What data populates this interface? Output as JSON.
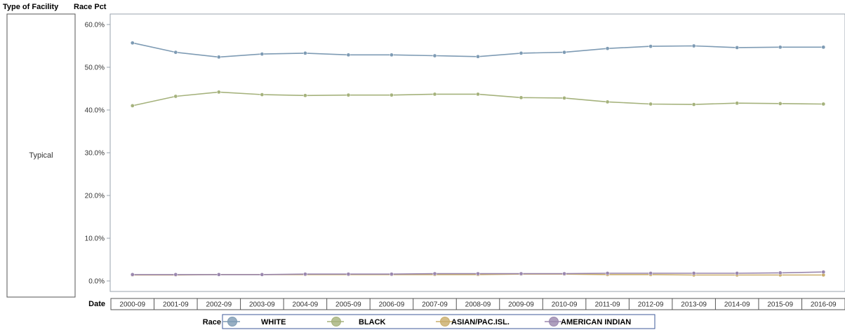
{
  "header": {
    "facility_label": "Type of Facility",
    "pct_label": "Race Pct"
  },
  "row_label": "Typical",
  "chart_data": {
    "type": "line",
    "xlabel": "Date",
    "ylabel": "",
    "ylim": [
      0,
      60
    ],
    "yticks": [
      "0.0%",
      "10.0%",
      "20.0%",
      "30.0%",
      "40.0%",
      "50.0%",
      "60.0%"
    ],
    "yticks_values": [
      0,
      10,
      20,
      30,
      40,
      50,
      60
    ],
    "categories": [
      "2000-09",
      "2001-09",
      "2002-09",
      "2003-09",
      "2004-09",
      "2005-09",
      "2006-09",
      "2007-09",
      "2008-09",
      "2009-09",
      "2010-09",
      "2011-09",
      "2012-09",
      "2013-09",
      "2014-09",
      "2015-09",
      "2016-09"
    ],
    "grid": false,
    "legend_position": "bottom",
    "legend_title": "Race",
    "series": [
      {
        "name": "WHITE",
        "color": "#7e9bb4",
        "values": [
          55.7,
          53.5,
          52.4,
          53.1,
          53.3,
          52.9,
          52.9,
          52.7,
          52.5,
          53.3,
          53.5,
          54.4,
          54.9,
          55.0,
          54.6,
          54.7,
          54.7
        ]
      },
      {
        "name": "BLACK",
        "color": "#a5b27c",
        "values": [
          41.0,
          43.2,
          44.2,
          43.6,
          43.4,
          43.5,
          43.5,
          43.7,
          43.7,
          42.9,
          42.8,
          41.9,
          41.4,
          41.3,
          41.6,
          41.5,
          41.4
        ]
      },
      {
        "name": "ASIAN/PAC.ISL.",
        "color": "#c9ad6a",
        "values": [
          1.4,
          1.4,
          1.5,
          1.5,
          1.5,
          1.5,
          1.5,
          1.5,
          1.5,
          1.6,
          1.6,
          1.5,
          1.5,
          1.4,
          1.4,
          1.4,
          1.4
        ]
      },
      {
        "name": "AMERICAN INDIAN",
        "color": "#9a87ae",
        "values": [
          1.5,
          1.5,
          1.5,
          1.5,
          1.6,
          1.6,
          1.6,
          1.7,
          1.7,
          1.7,
          1.7,
          1.8,
          1.8,
          1.8,
          1.8,
          1.9,
          2.1
        ]
      }
    ]
  }
}
